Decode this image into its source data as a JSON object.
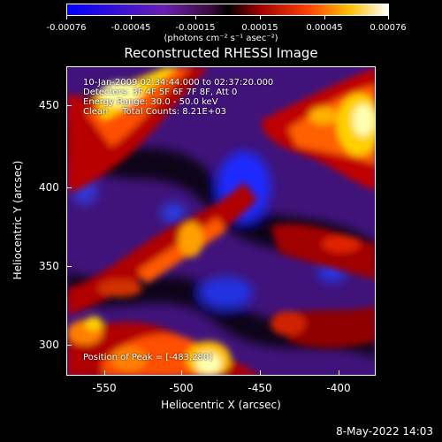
{
  "colorbar": {
    "tick_labels": [
      "-0.00076",
      "-0.00045",
      "-0.00015",
      "0.00015",
      "0.00045",
      "0.00076"
    ],
    "units_label": "(photons cm⁻² s⁻¹ asec⁻²)"
  },
  "title": "Reconstructed RHESSI Image",
  "info": {
    "time_range": "10-Jan-2009 02:34:44.000 to 02:37:20.000",
    "detectors": "Detectors: 3F 4F 5F 6F 7F 8F, Att 0",
    "energy": "Energy Range: 30.0 - 50.0 keV",
    "clean": "Clean     Total Counts: 8.21E+03"
  },
  "peak": "Position of Peak = [-483,280]",
  "axes": {
    "x_label": "Heliocentric X (arcsec)",
    "y_label": "Heliocentric Y (arcsec)",
    "x_ticks": [
      "-550",
      "-500",
      "-450",
      "-400"
    ],
    "y_ticks": [
      "300",
      "350",
      "400",
      "450"
    ]
  },
  "datestamp": "8-May-2022 14:03",
  "colors": {
    "background": "#000000",
    "colormap": [
      "#0000ff",
      "#4b16a8",
      "#5a1a7a",
      "#000000",
      "#b00000",
      "#ff3000",
      "#ff9000",
      "#ffe000",
      "#ffffff"
    ]
  }
}
